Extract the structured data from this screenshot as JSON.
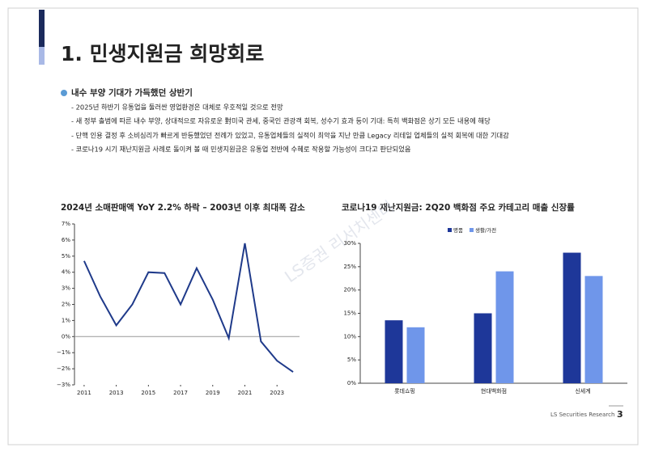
{
  "header": {
    "title": "1. 민생지원금 희망회로"
  },
  "section": {
    "heading": "내수 부양 기대가 가득했던 상반기",
    "bullets": [
      "- 2025년 하반기 유통업을 둘러싼 영업환경은 대체로 우호적일 것으로 전망",
      "- 새 정부 출범에 따른 내수 부양, 상대적으로 자유로운 對미국 관세, 중국인 관광객 회복, 성수기 효과 등이 기대: 특히 백화점은 상기 모든 내용에 해당",
      "- 단핵 인용 결정 후 소비심리가 빠르게 반등했었던 전례가 있었고, 유통업체들의 실적이 최악을 지난 만큼 Legacy 리테일 업체들의 실적 회복에 대한 기대감",
      "- 코로나19 시기 재난지원금 사례로 돌이켜 볼 때 민생지원금은 유통업 전반에 수혜로 작용할 가능성이 크다고 판단되었음"
    ]
  },
  "chart_data": [
    {
      "type": "line",
      "title": "2024년 소매판매액 YoY 2.2% 하락 – 2003년 이후 최대폭 감소",
      "x": [
        2011,
        2012,
        2013,
        2014,
        2015,
        2016,
        2017,
        2018,
        2019,
        2020,
        2021,
        2022,
        2023,
        2024
      ],
      "series": [
        {
          "name": null,
          "color": "#1f3a8a",
          "values": [
            4.7,
            2.5,
            0.7,
            2.0,
            4.0,
            3.95,
            2.0,
            4.25,
            2.3,
            -0.1,
            5.8,
            -0.3,
            -1.5,
            -2.2
          ]
        }
      ],
      "xlim": [
        2010.4,
        2024.4
      ],
      "xticks": [
        2011,
        2013,
        2015,
        2017,
        2019,
        2021,
        2023
      ],
      "ylim": [
        -3,
        7
      ],
      "yticks": [
        {
          "value": -3,
          "label": "−3%"
        },
        {
          "value": -2,
          "label": "−2%"
        },
        {
          "value": -1,
          "label": "−1%"
        },
        {
          "value": 0,
          "label": "0%"
        },
        {
          "value": 1,
          "label": "1%"
        },
        {
          "value": 2,
          "label": "2%"
        },
        {
          "value": 3,
          "label": "3%"
        },
        {
          "value": 4,
          "label": "4%"
        },
        {
          "value": 5,
          "label": "5%"
        },
        {
          "value": 6,
          "label": "6%"
        },
        {
          "value": 7,
          "label": "7%"
        }
      ],
      "grid": false
    },
    {
      "type": "bar",
      "title": "코로나19 재난지원금: 2Q20 백화점 주요 카테고리 매출 신장률",
      "categories": [
        "롯데쇼핑",
        "현대백화점",
        "신세계"
      ],
      "series": [
        {
          "name": "명품",
          "color": "#1e3799",
          "values": [
            13.5,
            15,
            28
          ]
        },
        {
          "name": "생활/가전",
          "color": "#6f96ea",
          "values": [
            12,
            24,
            23
          ]
        }
      ],
      "ylim": [
        0,
        30
      ],
      "yticks": [
        {
          "value": 0,
          "label": "0%"
        },
        {
          "value": 5,
          "label": "5%"
        },
        {
          "value": 10,
          "label": "10%"
        },
        {
          "value": 15,
          "label": "15%"
        },
        {
          "value": 20,
          "label": "20%"
        },
        {
          "value": 25,
          "label": "25%"
        },
        {
          "value": 30,
          "label": "30%"
        }
      ],
      "grid": false,
      "legend": "top"
    }
  ],
  "watermark": "LS증권 리서치센터",
  "footer": {
    "source": "LS Securities Research",
    "page": "3"
  }
}
